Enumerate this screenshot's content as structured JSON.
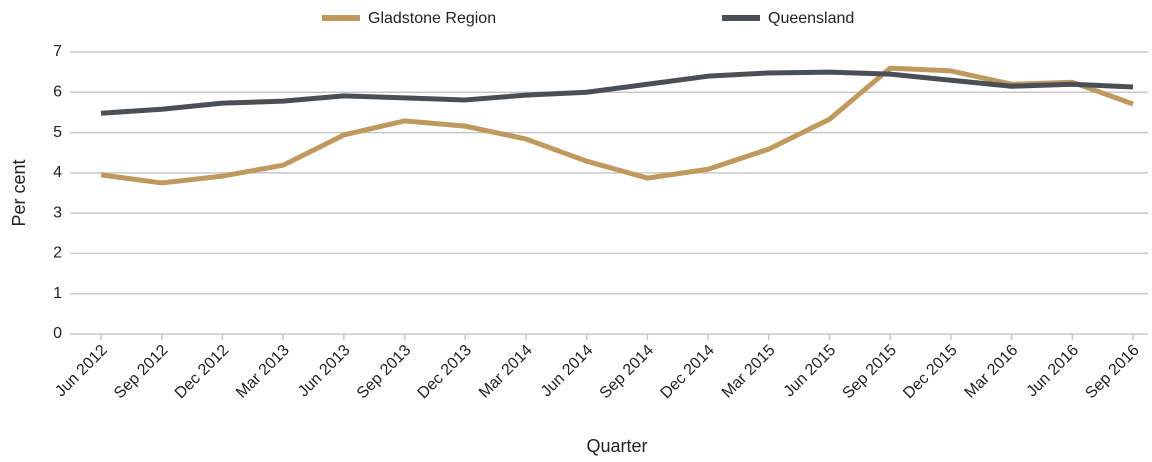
{
  "chart_data": {
    "type": "line",
    "xlabel": "Quarter",
    "ylabel": "Per cent",
    "categories": [
      "Jun 2012",
      "Sep 2012",
      "Dec 2012",
      "Mar 2013",
      "Jun 2013",
      "Sep 2013",
      "Dec 2013",
      "Mar 2014",
      "Jun 2014",
      "Sep 2014",
      "Dec 2014",
      "Mar 2015",
      "Jun 2015",
      "Sep 2015",
      "Dec 2015",
      "Mar 2016",
      "Jun 2016",
      "Sep 2016"
    ],
    "series": [
      {
        "name": "Gladstone Region",
        "color": "#c0995f",
        "values": [
          3.95,
          3.75,
          3.92,
          4.19,
          4.94,
          5.29,
          5.16,
          4.84,
          4.29,
          3.87,
          4.09,
          4.59,
          5.33,
          6.6,
          6.53,
          6.2,
          6.25,
          5.71
        ]
      },
      {
        "name": "Queensland",
        "color": "#4a4f55",
        "values": [
          5.48,
          5.58,
          5.73,
          5.78,
          5.91,
          5.86,
          5.81,
          5.93,
          6.0,
          6.2,
          6.4,
          6.48,
          6.5,
          6.45,
          6.3,
          6.15,
          6.2,
          6.13
        ]
      }
    ],
    "ylim": [
      0,
      7
    ],
    "yticks": [
      0,
      1,
      2,
      3,
      4,
      5,
      6,
      7
    ],
    "grid": true,
    "legend": "top"
  }
}
